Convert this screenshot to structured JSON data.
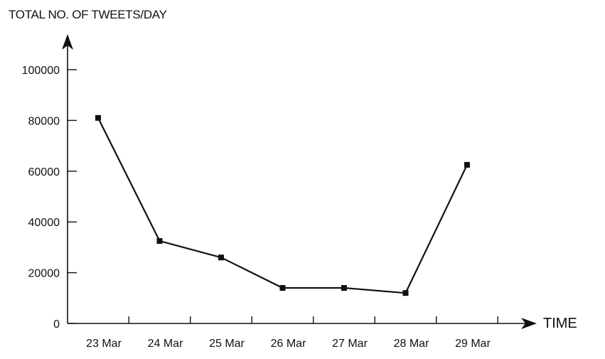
{
  "chart_data": {
    "type": "line",
    "ylabel": "TOTAL NO. OF TWEETS/DAY",
    "xlabel": "TIME",
    "categories": [
      "23 Mar",
      "24 Mar",
      "25 Mar",
      "26 Mar",
      "27 Mar",
      "28 Mar",
      "29 Mar"
    ],
    "values": [
      81000,
      32500,
      26000,
      14000,
      14000,
      12000,
      62500
    ],
    "ylim": [
      0,
      100000
    ],
    "yticks": [
      0,
      20000,
      40000,
      60000,
      80000,
      100000
    ],
    "ytick_labels": [
      "0",
      "20000",
      "40000",
      "60000",
      "80000",
      "100000"
    ],
    "grid": false,
    "legend": "none",
    "line_color": "#111111",
    "marker": "square"
  }
}
